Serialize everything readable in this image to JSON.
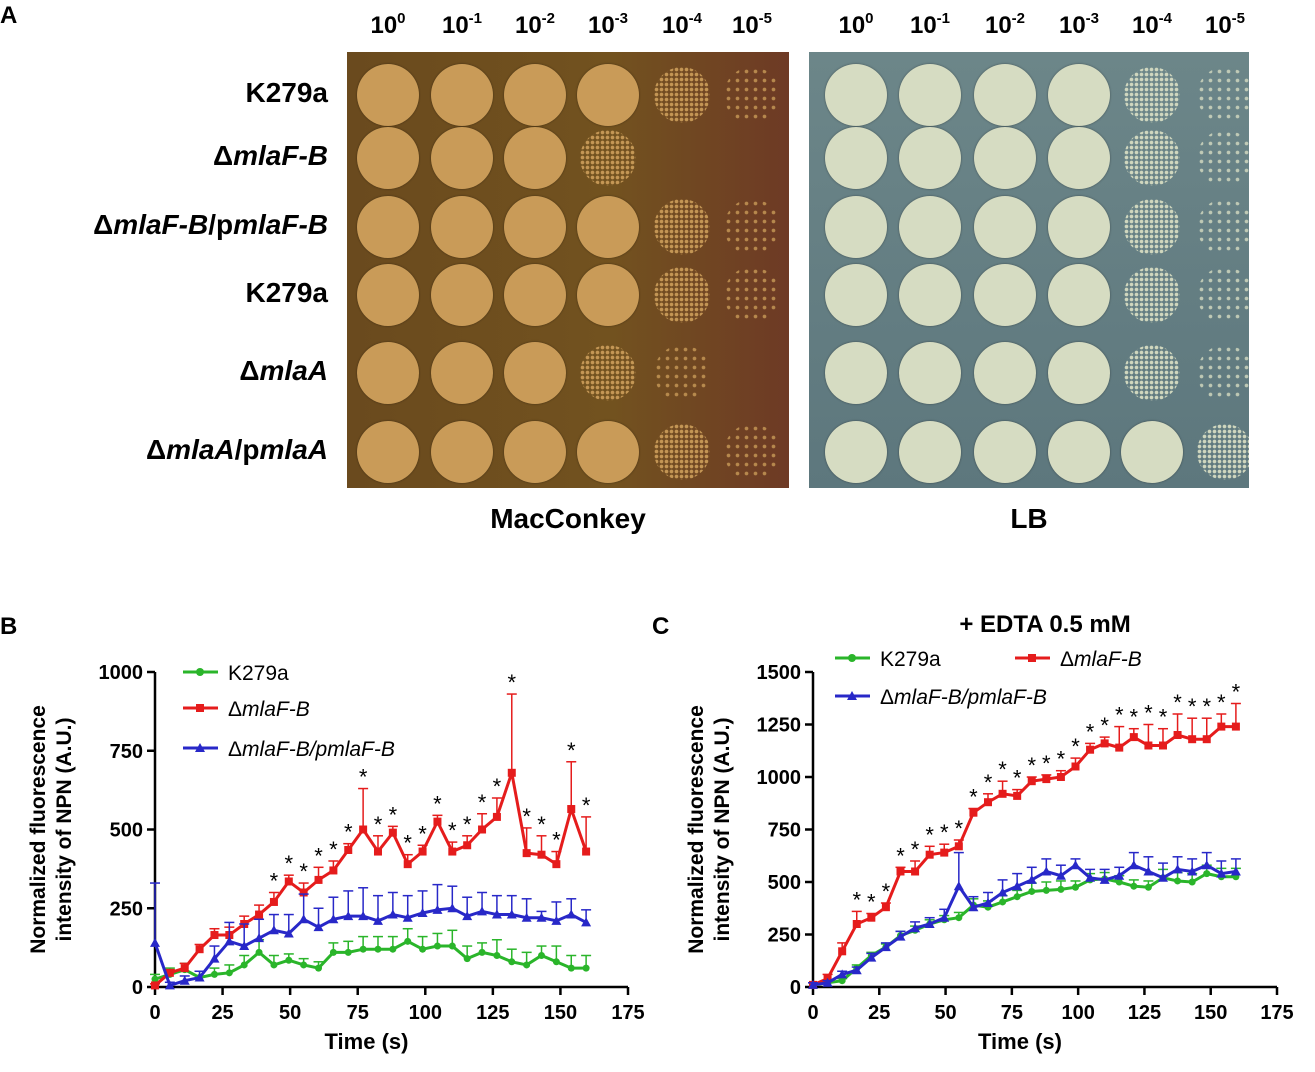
{
  "panel_a": {
    "letter": "A",
    "dilutions": [
      {
        "base": "10",
        "exp": "0"
      },
      {
        "base": "10",
        "exp": "-1"
      },
      {
        "base": "10",
        "exp": "-2"
      },
      {
        "base": "10",
        "exp": "-3"
      },
      {
        "base": "10",
        "exp": "-4"
      },
      {
        "base": "10",
        "exp": "-5"
      }
    ],
    "strains": [
      {
        "pre": "",
        "italic": "",
        "label": "K279a",
        "style": "plain"
      },
      {
        "pre": "Δ",
        "italic": "mlaF-B",
        "label": "ΔmlaF-B",
        "style": "italic"
      },
      {
        "pre": "Δ",
        "italic": "mlaF-B",
        "mid": "/p",
        "italic2": "mlaF-B",
        "label": "ΔmlaF-B/pmlaF-B",
        "style": "italic"
      },
      {
        "pre": "",
        "italic": "",
        "label": "K279a",
        "style": "plain"
      },
      {
        "pre": "Δ",
        "italic": "mlaA",
        "label": "ΔmlaA",
        "style": "italic"
      },
      {
        "pre": "Δ",
        "italic": "mlaA",
        "mid": "/p",
        "italic2": "mlaA",
        "label": "ΔmlaA/pmlaA",
        "style": "italic"
      }
    ],
    "plates": {
      "left_label": "MacConkey",
      "right_label": "LB",
      "macconkey_growth": [
        [
          1,
          1,
          1,
          1,
          0.6,
          0.3
        ],
        [
          1,
          1,
          1,
          0.7,
          0,
          0
        ],
        [
          1,
          1,
          1,
          1,
          0.6,
          0.3
        ],
        [
          1,
          1,
          1,
          1,
          0.6,
          0.3
        ],
        [
          1,
          1,
          1,
          0.6,
          0.3,
          0
        ],
        [
          1,
          1,
          1,
          1,
          0.6,
          0.3
        ]
      ],
      "lb_growth": [
        [
          1,
          1,
          1,
          1,
          0.6,
          0.3
        ],
        [
          1,
          1,
          1,
          1,
          0.6,
          0.3
        ],
        [
          1,
          1,
          1,
          1,
          0.6,
          0.3
        ],
        [
          1,
          1,
          1,
          1,
          0.6,
          0.3
        ],
        [
          1,
          1,
          1,
          1,
          0.6,
          0.3
        ],
        [
          1,
          1,
          1,
          1,
          1,
          0.7
        ]
      ],
      "colors": {
        "mac_bg": "#6b4a1e",
        "mac_colony": "#c99b58",
        "lb_bg": "#5f7a80",
        "lb_colony": "#d6dcc2"
      }
    }
  },
  "chart_data": [
    {
      "panel": "B",
      "type": "line",
      "title": "",
      "xlabel": "Time  (s)",
      "ylabel_line1": "Normalized fluorescence",
      "ylabel_line2": "intensity of NPN (A.U.)",
      "xlim": [
        0,
        175
      ],
      "ylim": [
        0,
        1000
      ],
      "xticks": [
        0,
        25,
        50,
        75,
        100,
        125,
        150,
        175
      ],
      "yticks": [
        0,
        250,
        500,
        750,
        1000
      ],
      "x": [
        0,
        5.5,
        11,
        16.5,
        22,
        27.5,
        33,
        38.5,
        44,
        49.5,
        55,
        60.5,
        66,
        71.5,
        77,
        82.5,
        88,
        93.5,
        99,
        104.5,
        110,
        115.5,
        121,
        126.5,
        132,
        137.5,
        143,
        148.5,
        154,
        159.5
      ],
      "legend": [
        {
          "label": "K279a",
          "pre": "",
          "italic": ""
        },
        {
          "label": "ΔmlaF-B",
          "pre": "Δ",
          "italic": "mlaF-B"
        },
        {
          "label": "ΔmlaF-B/pmlaF-B",
          "pre": "Δ",
          "italic": "mlaF-B/pmlaF-B"
        }
      ],
      "series": [
        {
          "name": "K279a",
          "color": "#2ab52a",
          "marker": "circle",
          "values": [
            25,
            40,
            55,
            30,
            40,
            45,
            70,
            110,
            70,
            85,
            70,
            60,
            110,
            110,
            120,
            120,
            120,
            145,
            120,
            130,
            130,
            90,
            110,
            100,
            80,
            70,
            100,
            80,
            60,
            60
          ],
          "errors": [
            15,
            20,
            20,
            20,
            20,
            25,
            30,
            40,
            30,
            20,
            20,
            20,
            30,
            35,
            40,
            40,
            40,
            40,
            40,
            40,
            50,
            40,
            30,
            50,
            40,
            40,
            30,
            50,
            40,
            40
          ]
        },
        {
          "name": "ΔmlaF-B",
          "color": "#e51c1c",
          "marker": "square",
          "values": [
            5,
            45,
            60,
            120,
            165,
            165,
            200,
            230,
            270,
            335,
            300,
            340,
            370,
            435,
            500,
            430,
            490,
            390,
            430,
            525,
            430,
            450,
            500,
            540,
            680,
            425,
            420,
            390,
            565,
            430
          ],
          "errors": [
            5,
            10,
            15,
            15,
            20,
            25,
            25,
            30,
            30,
            20,
            30,
            40,
            30,
            20,
            130,
            50,
            20,
            30,
            20,
            20,
            30,
            30,
            50,
            60,
            250,
            80,
            60,
            40,
            150,
            110
          ]
        },
        {
          "name": "ΔmlaF-B/pmlaF-B",
          "color": "#2828c8",
          "marker": "triangle",
          "values": [
            140,
            5,
            20,
            30,
            90,
            145,
            130,
            155,
            180,
            170,
            215,
            190,
            215,
            225,
            225,
            210,
            230,
            220,
            235,
            245,
            250,
            225,
            240,
            230,
            230,
            220,
            220,
            210,
            230,
            205
          ],
          "errors": [
            190,
            10,
            15,
            20,
            40,
            60,
            70,
            60,
            50,
            60,
            80,
            60,
            70,
            80,
            90,
            80,
            70,
            70,
            70,
            80,
            70,
            60,
            60,
            60,
            60,
            60,
            20,
            60,
            50,
            40
          ]
        }
      ],
      "significance": [
        0,
        0,
        0,
        0,
        0,
        0,
        0,
        0,
        1,
        1,
        1,
        1,
        1,
        1,
        1,
        1,
        1,
        1,
        1,
        1,
        1,
        1,
        1,
        1,
        1,
        1,
        1,
        1,
        1,
        1
      ]
    },
    {
      "panel": "C",
      "type": "line",
      "title": "+ EDTA 0.5 mM",
      "xlabel": "Time  (s)",
      "ylabel_line1": "Normalized fluorescence",
      "ylabel_line2": "intensity of NPN (A.U.)",
      "xlim": [
        0,
        175
      ],
      "ylim": [
        0,
        1500
      ],
      "xticks": [
        0,
        25,
        50,
        75,
        100,
        125,
        150,
        175
      ],
      "yticks": [
        0,
        250,
        500,
        750,
        1000,
        1250,
        1500
      ],
      "x": [
        0,
        5.5,
        11,
        16.5,
        22,
        27.5,
        33,
        38.5,
        44,
        49.5,
        55,
        60.5,
        66,
        71.5,
        77,
        82.5,
        88,
        93.5,
        99,
        104.5,
        110,
        115.5,
        121,
        126.5,
        132,
        137.5,
        143,
        148.5,
        154,
        159.5
      ],
      "legend": [
        {
          "label": "K279a",
          "pre": "",
          "italic": ""
        },
        {
          "label": "ΔmlaF-B",
          "pre": "Δ",
          "italic": "mlaF-B"
        },
        {
          "label": "ΔmlaF-B/pmlaF-B",
          "pre": "Δ",
          "italic": "mlaF-B/pmlaF-B"
        }
      ],
      "series": [
        {
          "name": "K279a",
          "color": "#2ab52a",
          "marker": "circle",
          "values": [
            10,
            20,
            30,
            90,
            150,
            190,
            245,
            270,
            300,
            320,
            330,
            390,
            380,
            405,
            430,
            455,
            460,
            465,
            475,
            510,
            515,
            500,
            480,
            475,
            520,
            505,
            500,
            540,
            525,
            525
          ],
          "errors": [
            10,
            10,
            10,
            15,
            15,
            15,
            20,
            20,
            20,
            20,
            25,
            30,
            30,
            30,
            30,
            40,
            40,
            40,
            30,
            30,
            30,
            30,
            30,
            30,
            40,
            40,
            40,
            40,
            40,
            40
          ]
        },
        {
          "name": "ΔmlaF-B",
          "color": "#e51c1c",
          "marker": "square",
          "values": [
            10,
            40,
            170,
            300,
            330,
            380,
            550,
            550,
            630,
            640,
            670,
            830,
            880,
            920,
            910,
            980,
            990,
            1000,
            1050,
            1130,
            1160,
            1140,
            1190,
            1150,
            1150,
            1200,
            1180,
            1180,
            1240,
            1240
          ],
          "errors": [
            10,
            20,
            40,
            60,
            20,
            20,
            20,
            50,
            40,
            40,
            30,
            20,
            40,
            60,
            30,
            20,
            20,
            30,
            40,
            30,
            30,
            100,
            40,
            100,
            80,
            100,
            100,
            100,
            60,
            110
          ]
        },
        {
          "name": "ΔmlaF-B/pmlaF-B",
          "color": "#2828c8",
          "marker": "triangle",
          "values": [
            10,
            20,
            60,
            80,
            140,
            190,
            240,
            280,
            300,
            330,
            480,
            380,
            400,
            450,
            480,
            510,
            550,
            530,
            580,
            520,
            510,
            530,
            580,
            550,
            520,
            560,
            550,
            580,
            540,
            550
          ],
          "errors": [
            10,
            10,
            15,
            15,
            20,
            20,
            25,
            30,
            30,
            40,
            160,
            50,
            50,
            60,
            60,
            60,
            60,
            50,
            30,
            40,
            50,
            40,
            60,
            70,
            70,
            60,
            60,
            60,
            60,
            60
          ]
        }
      ],
      "significance": [
        0,
        0,
        0,
        1,
        1,
        1,
        1,
        1,
        1,
        1,
        1,
        1,
        1,
        1,
        1,
        1,
        1,
        1,
        1,
        1,
        1,
        1,
        1,
        1,
        1,
        1,
        1,
        1,
        1,
        1
      ]
    }
  ]
}
